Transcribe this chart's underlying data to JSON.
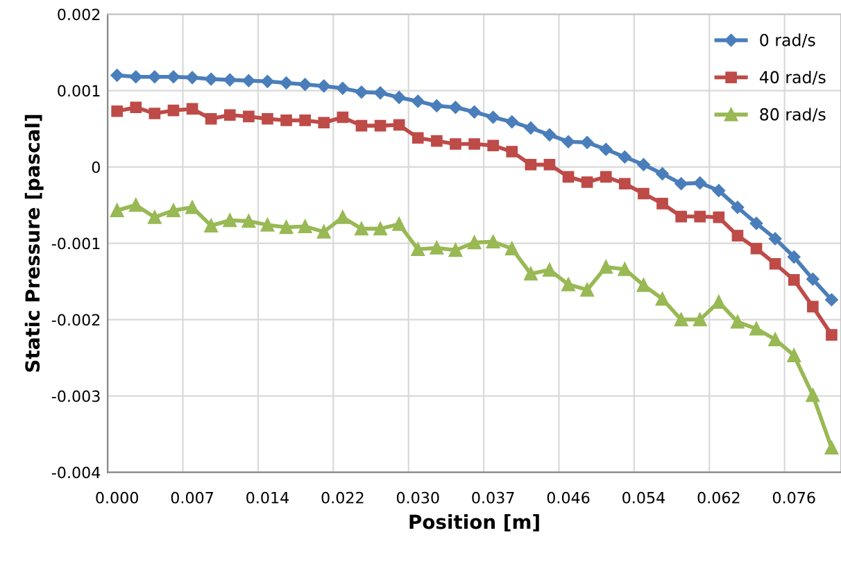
{
  "chart_data": {
    "type": "line",
    "xlabel": "Position [m]",
    "ylabel": "Static Pressure [pascal]",
    "categories": [
      "0.000",
      null,
      null,
      null,
      "0.007",
      null,
      null,
      null,
      "0.014",
      null,
      null,
      null,
      "0.022",
      null,
      null,
      null,
      "0.030",
      null,
      null,
      null,
      "0.037",
      null,
      null,
      null,
      "0.046",
      null,
      null,
      null,
      "0.054",
      null,
      null,
      null,
      "0.062",
      null,
      null,
      null,
      "0.076",
      null,
      null
    ],
    "series": [
      {
        "name": "0 rad/s",
        "color": "#4a7ebb",
        "marker": "diamond",
        "values": [
          0.0012,
          0.00118,
          0.00118,
          0.00118,
          0.00117,
          0.00115,
          0.00114,
          0.00113,
          0.00112,
          0.0011,
          0.00108,
          0.00106,
          0.00103,
          0.00098,
          0.00097,
          0.00091,
          0.00086,
          0.0008,
          0.00078,
          0.00072,
          0.00065,
          0.00059,
          0.00051,
          0.00042,
          0.00033,
          0.00032,
          0.00023,
          0.00013,
          3e-05,
          -9e-05,
          -0.00022,
          -0.00021,
          -0.00031,
          -0.00053,
          -0.00074,
          -0.00094,
          -0.00118,
          -0.00147,
          -0.00174
        ]
      },
      {
        "name": "40 rad/s",
        "color": "#be4b48",
        "marker": "square",
        "values": [
          0.00073,
          0.00078,
          0.0007,
          0.00074,
          0.00076,
          0.00063,
          0.00068,
          0.00066,
          0.00063,
          0.00061,
          0.00061,
          0.00058,
          0.00065,
          0.00054,
          0.00054,
          0.00055,
          0.00038,
          0.00034,
          0.0003,
          0.0003,
          0.00028,
          0.0002,
          3e-05,
          3e-05,
          -0.00013,
          -0.0002,
          -0.00013,
          -0.00022,
          -0.00035,
          -0.00048,
          -0.00065,
          -0.00065,
          -0.00066,
          -0.0009,
          -0.00107,
          -0.00127,
          -0.00148,
          -0.00183,
          -0.0022
        ]
      },
      {
        "name": "80 rad/s",
        "color": "#98b954",
        "marker": "triangle",
        "values": [
          -0.00057,
          -0.0005,
          -0.00066,
          -0.00057,
          -0.00053,
          -0.00077,
          -0.0007,
          -0.00071,
          -0.00076,
          -0.00079,
          -0.00078,
          -0.00085,
          -0.00066,
          -0.00081,
          -0.00081,
          -0.00075,
          -0.00108,
          -0.00106,
          -0.00109,
          -0.00099,
          -0.00098,
          -0.00107,
          -0.0014,
          -0.00135,
          -0.00154,
          -0.00161,
          -0.00131,
          -0.00134,
          -0.00155,
          -0.00173,
          -0.002,
          -0.002,
          -0.00177,
          -0.00203,
          -0.00212,
          -0.00226,
          -0.00247,
          -0.00299,
          -0.00368
        ]
      }
    ],
    "ylim": [
      -0.004,
      0.002
    ],
    "yticks": [
      0.002,
      0.001,
      0,
      -0.001,
      -0.002,
      -0.003,
      -0.004
    ],
    "grid": true,
    "legend": "top right",
    "line_style": "solid"
  }
}
